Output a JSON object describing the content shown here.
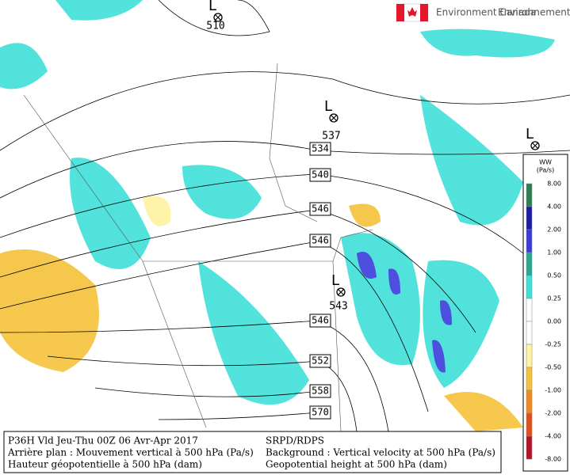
{
  "logo": {
    "english": "Environment Canada",
    "french": "Environnement Canada"
  },
  "map": {
    "lows": [
      {
        "symbol": "L",
        "value": "510"
      },
      {
        "symbol": "L",
        "value": "537"
      },
      {
        "symbol": "L",
        "value": "543"
      },
      {
        "symbol": "L"
      }
    ],
    "contour_labels": [
      "534",
      "540",
      "546",
      "546",
      "546",
      "552",
      "558",
      "570"
    ]
  },
  "legend": {
    "title": "WW",
    "unit": "(Pa/s)",
    "levels": [
      "8.00",
      "4.00",
      "2.00",
      "1.00",
      "0.50",
      "0.25",
      "0.00",
      "-0.25",
      "-0.50",
      "-1.00",
      "-2.00",
      "-4.00",
      "-8.00"
    ],
    "colors": [
      "#2f7d55",
      "#1c1ca8",
      "#3b3bdc",
      "#2aa88f",
      "#3fe0d8",
      "#ffffff",
      "#ffffff",
      "#fff2a0",
      "#f5c23a",
      "#f08a20",
      "#e0501c",
      "#b4142a"
    ]
  },
  "footer": {
    "left": [
      "P36H Vld Jeu-Thu 00Z 06 Avr-Apr 2017",
      "Arrière plan : Mouvement vertical à 500 hPa (Pa/s)",
      "Hauteur géopotentielle à 500 hPa (dam)"
    ],
    "right": [
      "SRPD/RDPS",
      "Background : Vertical velocity at 500 hPa (Pa/s)",
      "Geopotential height at 500 hPa (dam)"
    ]
  }
}
